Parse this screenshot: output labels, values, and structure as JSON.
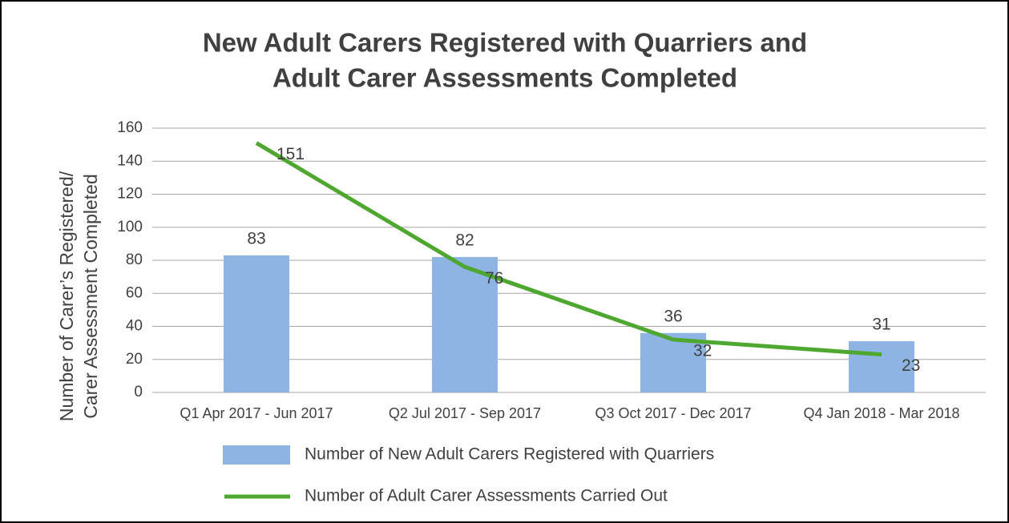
{
  "chart_data": {
    "type": "combo",
    "title": [
      "New Adult Carers Registered with Quarriers and",
      "Adult Carer Assessments Completed"
    ],
    "y_label": [
      "Number of Carer’s Registered/",
      "Carer Assessment Completed"
    ],
    "categories": [
      "Q1 Apr 2017 - Jun 2017",
      "Q2 Jul 2017 - Sep 2017",
      "Q3  Oct 2017 - Dec 2017",
      "Q4 Jan 2018 - Mar 2018"
    ],
    "series": [
      {
        "name": "Number of New Adult Carers Registered with Quarriers",
        "type": "bar",
        "color": "#8eb4e3",
        "values": [
          83,
          82,
          36,
          31
        ]
      },
      {
        "name": "Number of Adult Carer Assessments Carried Out",
        "type": "line",
        "color": "#4ea72e",
        "values": [
          151,
          76,
          32,
          23
        ]
      }
    ],
    "ylim": [
      0,
      160
    ],
    "yticks": [
      0,
      20,
      40,
      60,
      80,
      100,
      120,
      140,
      160
    ],
    "grid": true
  }
}
